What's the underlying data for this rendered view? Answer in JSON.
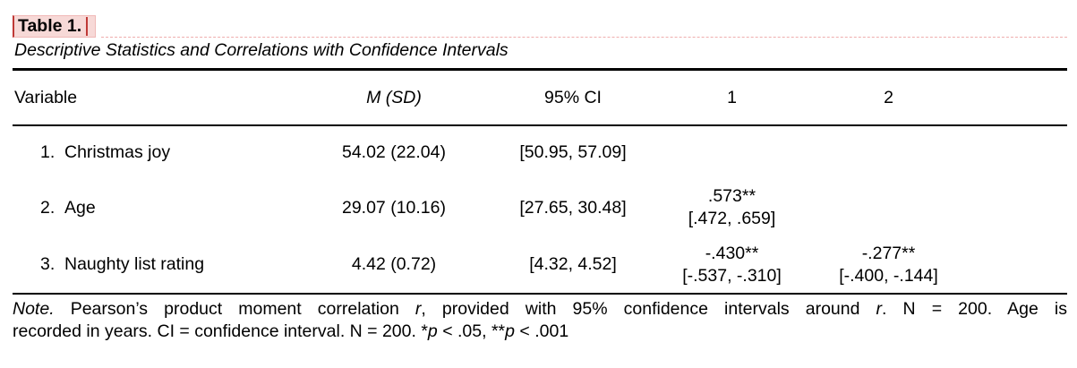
{
  "theme": {
    "page_bg": "#ffffff",
    "text": "#000000",
    "rule": "#000000",
    "highlight_bg": "#f7d9d7",
    "highlight_border": "#f0b9b7",
    "change_red": "#bf3936",
    "dotted_pink": "#efaead"
  },
  "heading": {
    "table_label": "Table 1.",
    "title": "Descriptive Statistics and Correlations with Confidence Intervals"
  },
  "table": {
    "columns": {
      "variable": "Variable",
      "m_sd": "M (SD)",
      "ci": "95% CI",
      "c1": "1",
      "c2": "2"
    },
    "rows": [
      {
        "num": "1.",
        "label": "Christmas joy",
        "m_sd": "54.02 (22.04)",
        "ci": "[50.95, 57.09]",
        "c1_r": "",
        "c1_ci": "",
        "c2_r": "",
        "c2_ci": ""
      },
      {
        "num": "2.",
        "label": "Age",
        "m_sd": "29.07 (10.16)",
        "ci": "[27.65, 30.48]",
        "c1_r": ".573**",
        "c1_ci": "[.472, .659]",
        "c2_r": "",
        "c2_ci": ""
      },
      {
        "num": "3.",
        "label": "Naughty list rating",
        "m_sd": "4.42 (0.72)",
        "ci": "[4.32, 4.52]",
        "c1_r": "-.430**",
        "c1_ci": "[-.537, -.310]",
        "c2_r": "-.277**",
        "c2_ci": "[-.400, -.144]"
      }
    ]
  },
  "note": {
    "line1": [
      {
        "t": "Note.",
        "i": true
      },
      {
        "t": " Pearson’s product moment correlation ",
        "i": false
      },
      {
        "t": "r",
        "i": true
      },
      {
        "t": ", provided with 95% confidence intervals around ",
        "i": false
      },
      {
        "t": "r",
        "i": true
      },
      {
        "t": ". N = 200. Age is",
        "i": false
      }
    ],
    "line2": [
      {
        "t": "recorded in years. CI = confidence interval. N = 200. *",
        "i": false
      },
      {
        "t": "p",
        "i": true
      },
      {
        "t": " < .05, **",
        "i": false
      },
      {
        "t": "p",
        "i": true
      },
      {
        "t": " < .001",
        "i": false
      }
    ]
  }
}
